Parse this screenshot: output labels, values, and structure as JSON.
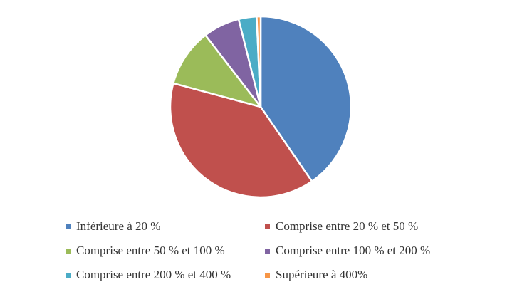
{
  "chart_data": {
    "type": "pie",
    "title": "",
    "categories": [
      "Inférieure à 20 %",
      "Comprise entre 20 % et 50 %",
      "Comprise entre 50 % et 100 %",
      "Comprise entre 100 % et 200 %",
      "Comprise entre 200 % et 400 %",
      "Supérieure à 400%"
    ],
    "values": [
      40.2,
      38.6,
      10.3,
      6.5,
      3.2,
      0.7
    ],
    "unit": "%",
    "colors": [
      "#4F81BD",
      "#C0504D",
      "#9BBB59",
      "#8064A2",
      "#4BACC6",
      "#F79646"
    ],
    "legend": "bottom",
    "slice_stroke": "#ffffff"
  }
}
